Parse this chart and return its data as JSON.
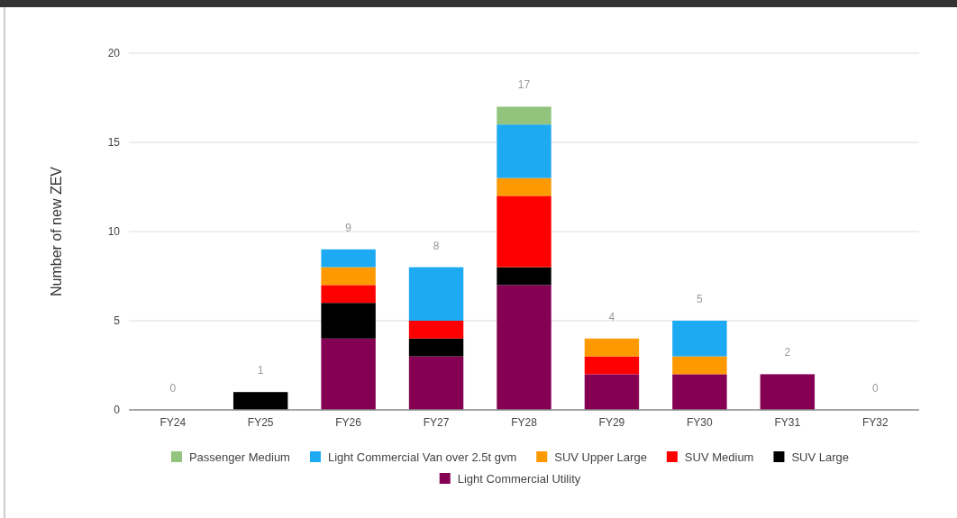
{
  "chart_data": {
    "type": "bar",
    "stacked": true,
    "ylabel": "Number of new ZEV",
    "categories": [
      "FY24",
      "FY25",
      "FY26",
      "FY27",
      "FY28",
      "FY29",
      "FY30",
      "FY31",
      "FY32"
    ],
    "series": [
      {
        "name": "Light Commercial Utility",
        "color": "#850052",
        "values": [
          0,
          0,
          4,
          3,
          7,
          2,
          2,
          2,
          0
        ]
      },
      {
        "name": "SUV Large",
        "color": "#000000",
        "values": [
          0,
          1,
          2,
          1,
          1,
          0,
          0,
          0,
          0
        ]
      },
      {
        "name": "SUV Medium",
        "color": "#ff0000",
        "values": [
          0,
          0,
          1,
          1,
          4,
          1,
          0,
          0,
          0
        ]
      },
      {
        "name": "SUV Upper Large",
        "color": "#ff9900",
        "values": [
          0,
          0,
          1,
          0,
          1,
          1,
          1,
          0,
          0
        ]
      },
      {
        "name": "Light Commercial Van over 2.5t gvm",
        "color": "#1eaaf3",
        "values": [
          0,
          0,
          1,
          3,
          3,
          0,
          2,
          0,
          0
        ]
      },
      {
        "name": "Passenger Medium",
        "color": "#93c47d",
        "values": [
          0,
          0,
          0,
          0,
          1,
          0,
          0,
          0,
          0
        ]
      }
    ],
    "totals": [
      "0",
      "1",
      "9",
      "8",
      "17",
      "4",
      "5",
      "2",
      "0"
    ],
    "ylim": [
      0,
      20
    ],
    "yticks": [
      0,
      5,
      10,
      15,
      20
    ],
    "grid": "y",
    "legend": "bottom"
  }
}
